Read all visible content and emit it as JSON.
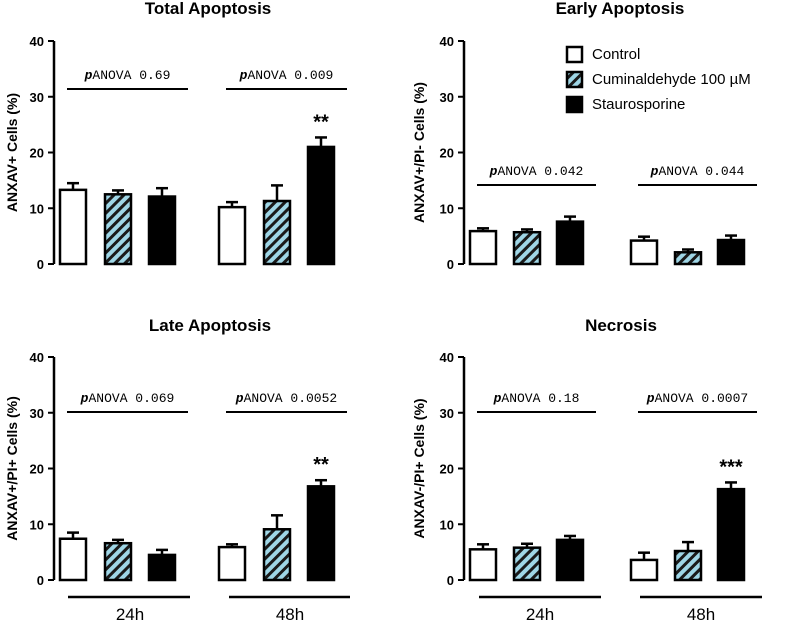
{
  "colors": {
    "control_fill": "#ffffff",
    "cuminaldehyde_fill": "#9fd6e6",
    "staurosporine_fill": "#000000",
    "axis": "#000000"
  },
  "legend": {
    "placement": "top-right",
    "items": [
      {
        "label": "Control",
        "pattern": "open"
      },
      {
        "label": "Cuminaldehyde 100 µM",
        "pattern": "hatched-cyan"
      },
      {
        "label": "Staurosporine",
        "pattern": "solid-black"
      }
    ]
  },
  "groups": [
    "24h",
    "48h"
  ],
  "chart_data": [
    {
      "type": "bar",
      "title": "Total Apoptosis",
      "ylabel": "ANXAV+ Cells (%)",
      "ylim": [
        0,
        40
      ],
      "yticks": [
        "0",
        "10",
        "20",
        "30",
        "40"
      ],
      "categories": [
        "24h",
        "48h"
      ],
      "series": [
        {
          "name": "Control",
          "values": [
            13.3,
            10.2
          ],
          "errors": [
            1.2,
            0.9
          ]
        },
        {
          "name": "Cuminaldehyde 100 µM",
          "values": [
            12.5,
            11.3
          ],
          "errors": [
            0.7,
            2.8
          ]
        },
        {
          "name": "Staurosporine",
          "values": [
            12.1,
            21.0
          ],
          "errors": [
            1.5,
            1.7
          ]
        }
      ],
      "anova": [
        {
          "label": "ANOVA",
          "value": "0.69"
        },
        {
          "label": "ANOVA",
          "value": "0.009"
        }
      ],
      "significance": [
        "",
        "**"
      ]
    },
    {
      "type": "bar",
      "title": "Early Apoptosis",
      "ylabel": "ANXAV+/PI- Cells (%)",
      "ylim": [
        0,
        40
      ],
      "yticks": [
        "0",
        "10",
        "20",
        "30",
        "40"
      ],
      "categories": [
        "24h",
        "48h"
      ],
      "series": [
        {
          "name": "Control",
          "values": [
            5.9,
            4.2
          ],
          "errors": [
            0.5,
            0.7
          ]
        },
        {
          "name": "Cuminaldehyde 100 µM",
          "values": [
            5.7,
            2.1
          ],
          "errors": [
            0.5,
            0.5
          ]
        },
        {
          "name": "Staurosporine",
          "values": [
            7.6,
            4.3
          ],
          "errors": [
            0.9,
            0.8
          ]
        }
      ],
      "anova": [
        {
          "label": "ANOVA",
          "value": "0.042"
        },
        {
          "label": "ANOVA",
          "value": "0.044"
        }
      ],
      "significance": [
        "",
        ""
      ]
    },
    {
      "type": "bar",
      "title": "Late Apoptosis",
      "ylabel": "ANXAV+/PI+ Cells (%)",
      "ylim": [
        0,
        40
      ],
      "yticks": [
        "0",
        "10",
        "20",
        "30",
        "40"
      ],
      "categories": [
        "24h",
        "48h"
      ],
      "series": [
        {
          "name": "Control",
          "values": [
            7.4,
            5.9
          ],
          "errors": [
            1.1,
            0.5
          ]
        },
        {
          "name": "Cuminaldehyde 100 µM",
          "values": [
            6.6,
            9.1
          ],
          "errors": [
            0.6,
            2.5
          ]
        },
        {
          "name": "Staurosporine",
          "values": [
            4.5,
            16.8
          ],
          "errors": [
            0.9,
            1.1
          ]
        }
      ],
      "anova": [
        {
          "label": "ANOVA",
          "value": "0.069"
        },
        {
          "label": "ANOVA",
          "value": "0.0052"
        }
      ],
      "significance": [
        "",
        "**"
      ]
    },
    {
      "type": "bar",
      "title": "Necrosis",
      "ylabel": "ANXAV-/PI+ Cells (%)",
      "ylim": [
        0,
        40
      ],
      "yticks": [
        "0",
        "10",
        "20",
        "30",
        "40"
      ],
      "categories": [
        "24h",
        "48h"
      ],
      "series": [
        {
          "name": "Control",
          "values": [
            5.5,
            3.6
          ],
          "errors": [
            0.9,
            1.3
          ]
        },
        {
          "name": "Cuminaldehyde 100 µM",
          "values": [
            5.8,
            5.2
          ],
          "errors": [
            0.7,
            1.6
          ]
        },
        {
          "name": "Staurosporine",
          "values": [
            7.2,
            16.3
          ],
          "errors": [
            0.7,
            1.2
          ]
        }
      ],
      "anova": [
        {
          "label": "ANOVA",
          "value": "0.18"
        },
        {
          "label": "ANOVA",
          "value": "0.0007"
        }
      ],
      "significance": [
        "",
        "***"
      ]
    }
  ]
}
